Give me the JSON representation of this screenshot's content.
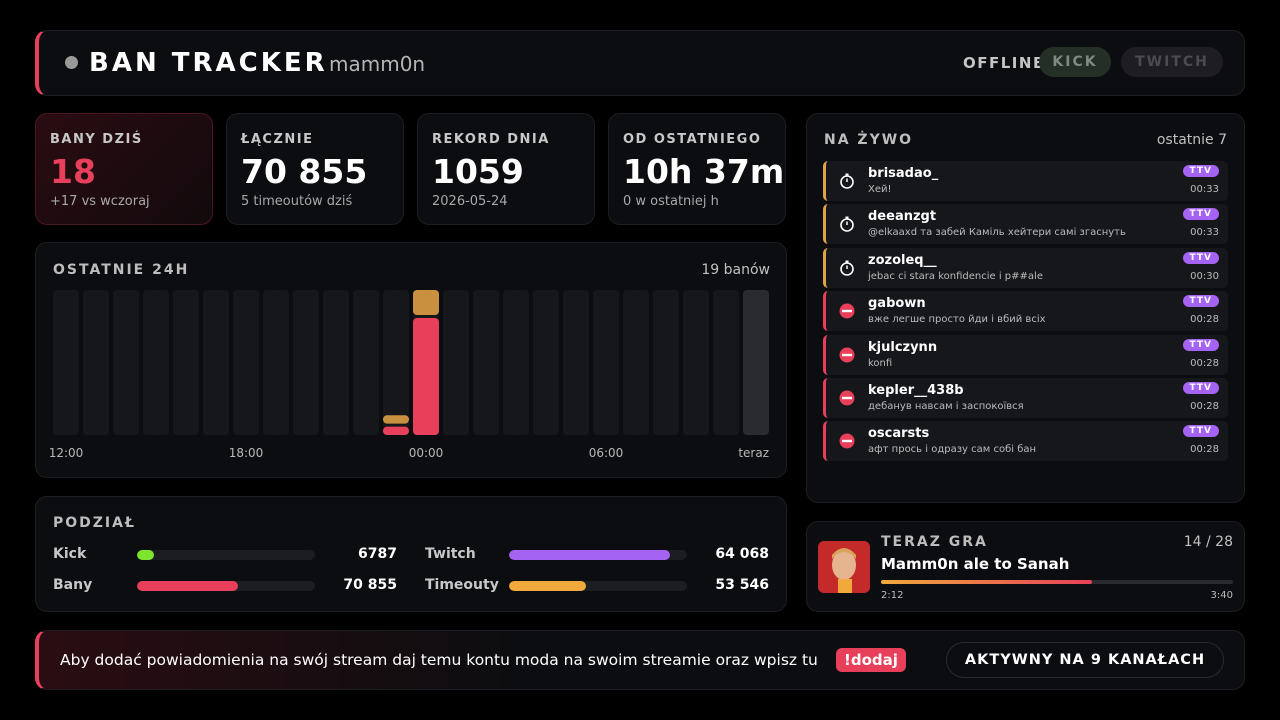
{
  "header": {
    "title": "BAN TRACKER",
    "user": "mamm0n",
    "status": "OFFLINE",
    "platforms": [
      "KICK",
      "TWITCH"
    ]
  },
  "stats": [
    {
      "label": "BANY DZIŚ",
      "value": "18",
      "note": "+17 vs wczoraj"
    },
    {
      "label": "ŁĄCZNIE",
      "value": "70 855",
      "note": "5 timeoutów dziś"
    },
    {
      "label": "REKORD DNIA",
      "value": "1059",
      "note": "2026-05-24"
    },
    {
      "label": "OD OSTATNIEGO",
      "value": "10h 37m",
      "note": "0 w ostatniej h"
    }
  ],
  "chart_data": {
    "type": "bar",
    "stacked": true,
    "title": "OSTATNIE 24H",
    "subtitle": "19 banów",
    "categories": [
      "12:00",
      null,
      null,
      null,
      null,
      null,
      "18:00",
      null,
      null,
      null,
      null,
      null,
      "00:00",
      null,
      null,
      null,
      null,
      null,
      "06:00",
      null,
      null,
      null,
      null,
      "teraz"
    ],
    "series": [
      {
        "color": "#e8405a",
        "values": [
          0,
          0,
          0,
          0,
          0,
          0,
          0,
          0,
          0,
          0,
          0,
          1,
          14,
          0,
          0,
          0,
          0,
          0,
          0,
          0,
          0,
          0,
          0,
          0
        ]
      },
      {
        "color": "#c8903f",
        "values": [
          0,
          0,
          0,
          0,
          0,
          0,
          0,
          0,
          0,
          0,
          0,
          1,
          3,
          0,
          0,
          0,
          0,
          0,
          0,
          0,
          0,
          0,
          0,
          0
        ]
      }
    ]
  },
  "breakdown": {
    "title": "PODZIAŁ",
    "groups": [
      [
        {
          "name": "Kick",
          "value": 6787,
          "color": "#7ee52f"
        },
        {
          "name": "Twitch",
          "value": 64068,
          "label": "64 068",
          "color": "#a463f2"
        }
      ],
      [
        {
          "name": "Bany",
          "value": 70855,
          "label": "70 855",
          "color": "#e8405a"
        },
        {
          "name": "Timeouty",
          "value": 53546,
          "label": "53 546",
          "color": "#f0a93a"
        }
      ]
    ]
  },
  "live": {
    "title": "NA ŻYWO",
    "subtitle": "ostatnie 7",
    "events": [
      {
        "kind": "timeout",
        "user": "brisadao_",
        "message": "Хей!",
        "badge": "TTV",
        "time": "00:33"
      },
      {
        "kind": "timeout",
        "user": "deeanzgt",
        "message": "@elkaaxd та забей Камiль хейтери самі згаснуть",
        "badge": "TTV",
        "time": "00:33"
      },
      {
        "kind": "timeout",
        "user": "zozoleq__",
        "message": "jebac ci stara konfidencie i p##ale",
        "badge": "TTV",
        "time": "00:30"
      },
      {
        "kind": "ban",
        "user": "gabown",
        "message": "вже легше просто йди і вбий всіх",
        "badge": "TTV",
        "time": "00:28"
      },
      {
        "kind": "ban",
        "user": "kjulczynn",
        "message": "konfi",
        "badge": "TTV",
        "time": "00:28"
      },
      {
        "kind": "ban",
        "user": "kepler__438b",
        "message": "дебанув навсам і заспокоївся",
        "badge": "TTV",
        "time": "00:28"
      },
      {
        "kind": "ban",
        "user": "oscarsts",
        "message": "афт прось і одразу сам собі бан",
        "badge": "TTV",
        "time": "00:28"
      }
    ]
  },
  "now_playing": {
    "title": "TERAZ GRA",
    "position": "14 / 28",
    "track": "Mamm0n ale to Sanah",
    "elapsed": "2:12",
    "duration": "3:40"
  },
  "footer": {
    "message": "Aby dodać powiadomienia na swój stream daj temu kontu moda na swoim streamie oraz wpisz tu",
    "command": "!dodaj",
    "status": "AKTYWNY NA 9 KANAŁACH"
  }
}
